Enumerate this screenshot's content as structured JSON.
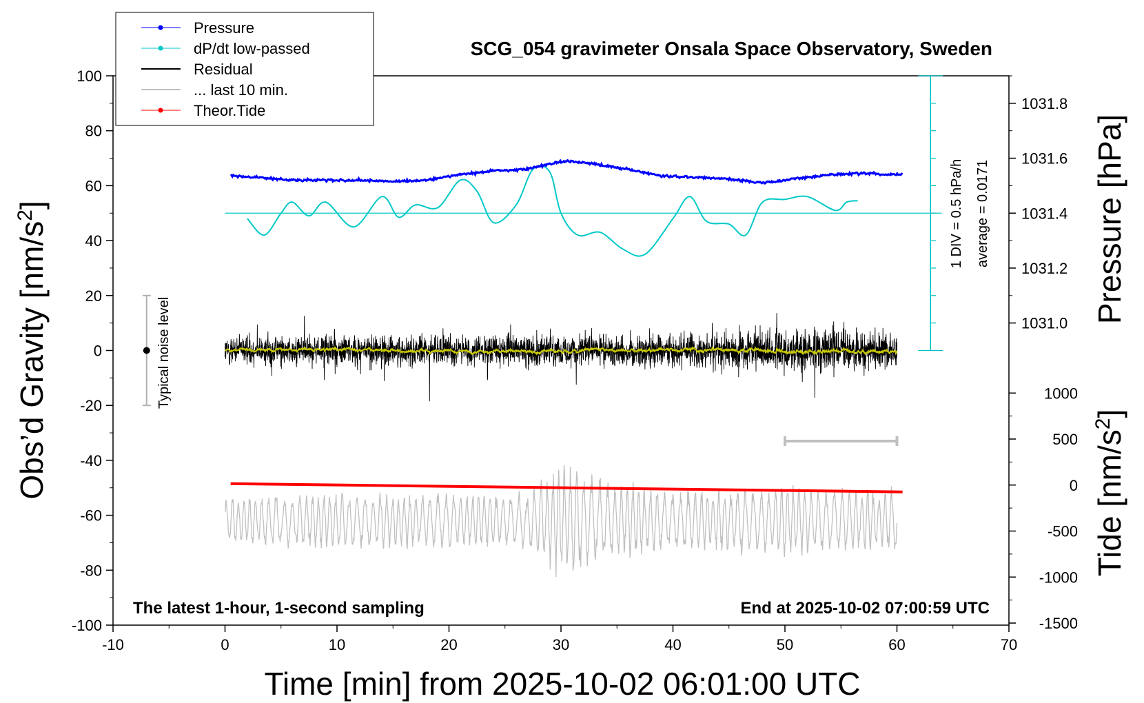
{
  "chart_data": {
    "type": "line",
    "title": "SCG_054 gravimeter Onsala Space Observatory, Sweden",
    "xlabel": "Time [min] from 2025-10-02 06:01:00 UTC",
    "ylabel_left": "Obs’d Gravity [nm/s",
    "ylabel_left_sup": "2",
    "ylabel_left_end": "]",
    "ylabel_right_top": "Pressure [hPa]",
    "ylabel_right_bottom": "Tide [nm/s",
    "ylabel_right_bottom_sup": "2",
    "ylabel_right_bottom_end": "]",
    "xlim": [
      -10,
      70
    ],
    "ylim": [
      -100,
      100
    ],
    "x_ticks": [
      "-10",
      "0",
      "10",
      "20",
      "30",
      "40",
      "50",
      "60",
      "70"
    ],
    "y_ticks": [
      "-100",
      "-80",
      "-60",
      "-40",
      "-20",
      "0",
      "20",
      "40",
      "60",
      "80",
      "100"
    ],
    "pressure_axis": {
      "ticks": [
        "1031.0",
        "1031.2",
        "1031.4",
        "1031.6",
        "1031.8"
      ],
      "tick_values": [
        1031.0,
        1031.2,
        1031.4,
        1031.6,
        1031.8
      ],
      "ref": {
        "value": 1031.4,
        "gravity": 50
      },
      "gravity_per_hpa": 100
    },
    "tide_axis": {
      "ticks": [
        "1000",
        "500",
        "0",
        "-500",
        "-1000",
        "-1500"
      ],
      "tick_values": [
        1000,
        500,
        0,
        -500,
        -1000,
        -1500
      ],
      "ref": {
        "value": 0,
        "gravity": -49
      },
      "gravity_per_unit": 0.0335
    },
    "legend": {
      "position": "top-left",
      "entries": [
        "Pressure",
        "dP/dt low-passed",
        "Residual",
        "... last 10 min.",
        "Theor.Tide"
      ]
    },
    "colors": {
      "pressure": "#0000ff",
      "dpdt": "#00c8c8",
      "residual": "#000000",
      "residual_smooth": "#c8c800",
      "last10": "#c0c0c0",
      "tide": "#ff0000",
      "scale_bar": "#00c0c0"
    },
    "series": [
      {
        "name": "Pressure",
        "units": "gravity-axis",
        "x": [
          0,
          3,
          6,
          9,
          12,
          15,
          18,
          21,
          24,
          27,
          29,
          30.5,
          33,
          36,
          39,
          42,
          45,
          48,
          51,
          54,
          57,
          60
        ],
        "values": [
          63.5,
          63,
          62,
          62,
          62,
          61.5,
          62,
          64,
          65.5,
          66,
          68,
          69,
          68,
          66,
          63.5,
          63,
          62.5,
          61,
          62.5,
          64,
          64.5,
          64
        ]
      },
      {
        "name": "dP/dt low-passed",
        "units": "gravity-axis",
        "x": [
          2,
          3.5,
          5,
          6,
          7.5,
          9,
          11.5,
          14,
          15.5,
          17,
          19,
          21,
          22.5,
          24,
          26,
          27.5,
          29,
          30,
          31.5,
          33.5,
          35.5,
          37.5,
          40,
          41.5,
          43,
          45,
          46.5,
          48,
          50,
          52,
          54.5,
          55.5,
          56.5
        ],
        "values": [
          48,
          42,
          50,
          54,
          49,
          54,
          45,
          56,
          48.5,
          53,
          52,
          62,
          58,
          46.5,
          53,
          66,
          65,
          50,
          42,
          43,
          37,
          35,
          48,
          56,
          47,
          46,
          42,
          54,
          55,
          56,
          51,
          54,
          54.5
        ]
      },
      {
        "name": "Residual",
        "x_range": [
          0,
          60
        ],
        "amplitude_envelope": {
          "x": [
            0,
            10,
            20,
            30,
            40,
            50,
            55,
            60
          ],
          "values": [
            10,
            13,
            11,
            12,
            13,
            15,
            18,
            12
          ]
        }
      },
      {
        "name": "... last 10 min.",
        "x_range": [
          0,
          60
        ],
        "offset": -62,
        "amplitude_envelope": {
          "x": [
            0,
            10,
            20,
            27,
            30,
            34,
            40,
            50,
            60
          ],
          "values": [
            8,
            10,
            9,
            9,
            20,
            14,
            10,
            12,
            10
          ]
        }
      },
      {
        "name": "Theor.Tide",
        "units": "gravity-axis",
        "x": [
          0.5,
          60.5
        ],
        "values": [
          -48.5,
          -51.5
        ]
      }
    ],
    "annotations": {
      "typical_noise_label": "Typical noise level",
      "typical_noise": {
        "x": -7,
        "center": 0,
        "half_range": 20
      },
      "scale_bar_note": "1 DIV = 0.5 hPa/h",
      "average_note": "average = 0.0171",
      "baseline_gravity": 50,
      "bottom_left": "The latest 1-hour, 1-second sampling",
      "bottom_right": "End at 2025-10-02 07:00:59 UTC",
      "grey_bar": {
        "x": [
          50,
          60
        ],
        "gravity": -33
      }
    }
  }
}
